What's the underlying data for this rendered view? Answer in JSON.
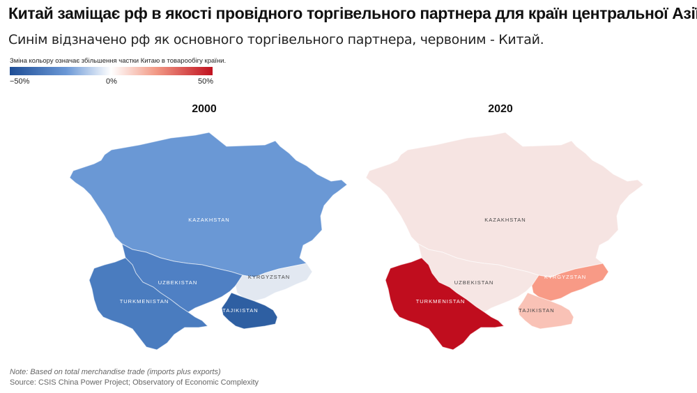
{
  "title": "Китай заміщає рф в якості провідного торгівельного партнера для країн центральної Азії",
  "subtitle": "Синім відзначено рф як основного торгівельного партнера, червоним - Китай.",
  "legend": {
    "caption": "Зміна кольору означає збільшення частки Китаю в товарообігу країни.",
    "min_label": "−50%",
    "mid_label": "0%",
    "max_label": "50%",
    "colors": {
      "low": "#1f4e96",
      "mid": "#ffffff",
      "high": "#c0111f"
    }
  },
  "maps": [
    {
      "year": "2000",
      "countries": [
        {
          "name": "KAZAKHSTAN",
          "color": "#6a98d5"
        },
        {
          "name": "UZBEKISTAN",
          "color": "#4f80c4"
        },
        {
          "name": "TURKMENISTAN",
          "color": "#4a7cbf"
        },
        {
          "name": "KYRGYZSTAN",
          "color": "#e2e8f1"
        },
        {
          "name": "TAJIKISTAN",
          "color": "#2e5fa2"
        }
      ]
    },
    {
      "year": "2020",
      "countries": [
        {
          "name": "KAZAKHSTAN",
          "color": "#f6e4e2"
        },
        {
          "name": "UZBEKISTAN",
          "color": "#f6e6e4"
        },
        {
          "name": "TURKMENISTAN",
          "color": "#c00d1e"
        },
        {
          "name": "KYRGYZSTAN",
          "color": "#f89a86"
        },
        {
          "name": "TAJIKISTAN",
          "color": "#f9c2b6"
        }
      ]
    }
  ],
  "note": "Note: Based on total merchandise trade (imports plus exports)",
  "source": "Source: CSIS China Power Project; Observatory of Economic Complexity"
}
